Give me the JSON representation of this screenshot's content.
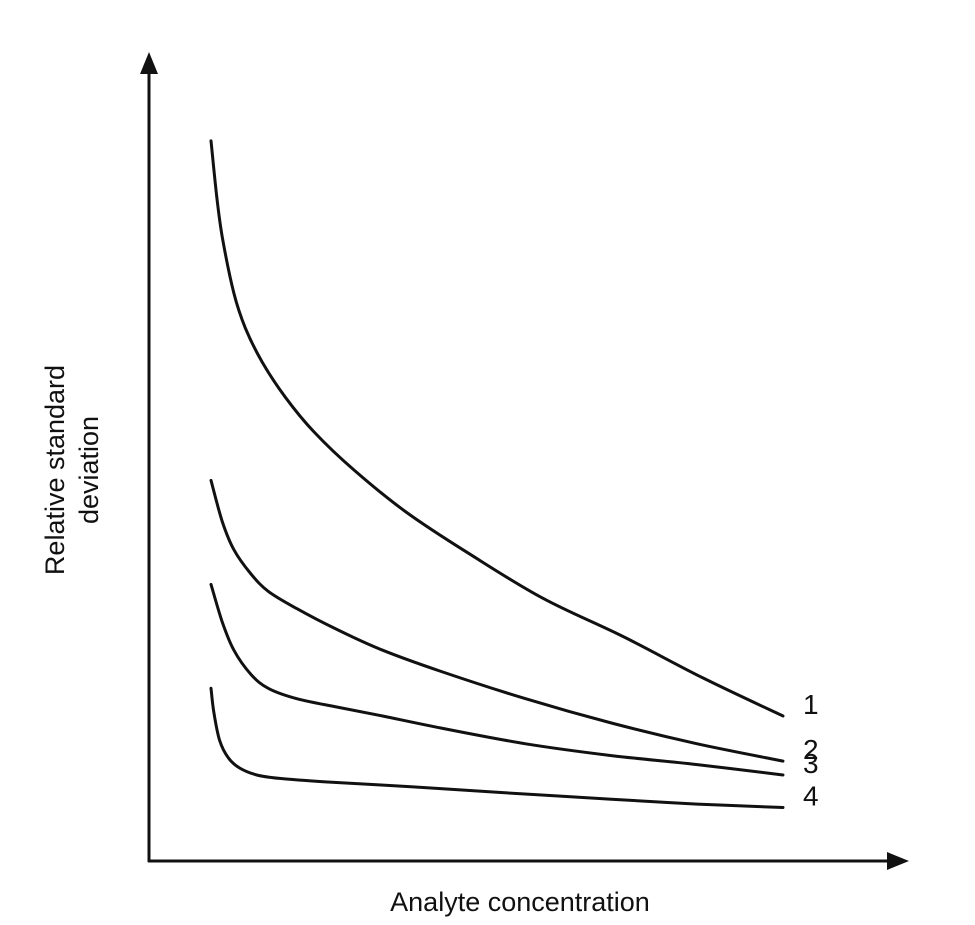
{
  "chart_data": {
    "type": "line",
    "title": "",
    "xlabel": "Analyte concentration",
    "ylabel_lines": [
      "Relative standard",
      "deviation"
    ],
    "x_ticks": false,
    "y_ticks": false,
    "grid": false,
    "xlim": [
      0,
      100
    ],
    "ylim": [
      0,
      100
    ],
    "series": [
      {
        "name": "1",
        "x": [
          0,
          1,
          2,
          4,
          6,
          9,
          13,
          18,
          25,
          34,
          45,
          58,
          72,
          86,
          100
        ],
        "y": [
          98,
          90,
          84,
          76,
          71,
          66,
          61,
          56,
          50.5,
          44.5,
          38.5,
          32,
          26.5,
          20.5,
          15
        ]
      },
      {
        "name": "2",
        "x": [
          0,
          2,
          4,
          7,
          10,
          15,
          22,
          30,
          40,
          55,
          70,
          85,
          100
        ],
        "y": [
          49,
          43,
          39,
          35.5,
          33,
          30.5,
          27.5,
          24.5,
          21.5,
          17.5,
          14,
          11,
          8.5
        ]
      },
      {
        "name": "3",
        "x": [
          0,
          2,
          4,
          7,
          10,
          15,
          22,
          30,
          40,
          55,
          70,
          85,
          100
        ],
        "y": [
          34,
          28.5,
          24.5,
          21,
          19,
          17.5,
          16.3,
          15,
          13.3,
          11,
          9.3,
          8,
          6.5
        ]
      },
      {
        "name": "4",
        "x": [
          0,
          0.5,
          1.5,
          3,
          5,
          8,
          12,
          20,
          35,
          50,
          70,
          85,
          100
        ],
        "y": [
          19,
          15.5,
          11.5,
          9,
          7.5,
          6.5,
          6,
          5.5,
          4.8,
          4,
          3,
          2.3,
          1.8
        ]
      }
    ]
  }
}
